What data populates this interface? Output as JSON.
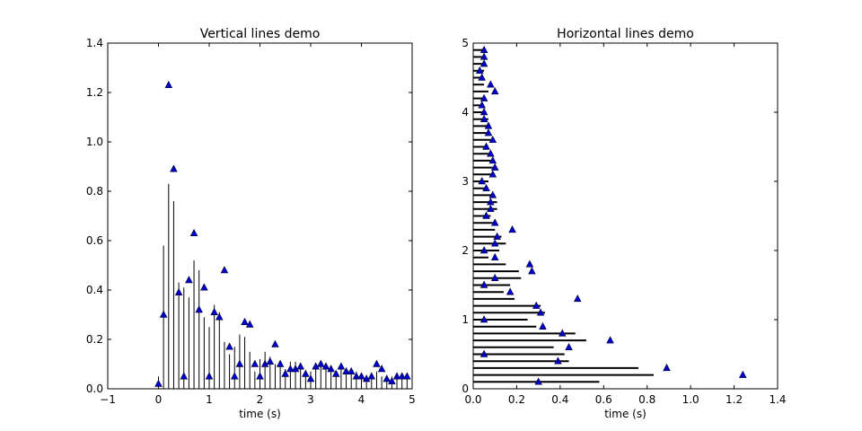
{
  "chart_data": [
    {
      "type": "vlines",
      "title": "Vertical lines demo",
      "xlabel": "time (s)",
      "ylabel": "",
      "xlim": [
        -1,
        5
      ],
      "ylim": [
        0,
        1.4
      ],
      "xticks": [
        "−1",
        "0",
        "1",
        "2",
        "3",
        "4",
        "5"
      ],
      "yticks": [
        "0.0",
        "0.2",
        "0.4",
        "0.6",
        "0.8",
        "1.0",
        "1.2",
        "1.4"
      ],
      "grid": false,
      "line_color": "#000000",
      "marker_color": "#0000cc",
      "x": [
        0.0,
        0.1,
        0.2,
        0.3,
        0.4,
        0.5,
        0.6,
        0.7,
        0.8,
        0.9,
        1.0,
        1.1,
        1.2,
        1.3,
        1.4,
        1.5,
        1.6,
        1.7,
        1.8,
        1.9,
        2.0,
        2.1,
        2.2,
        2.3,
        2.4,
        2.5,
        2.6,
        2.7,
        2.8,
        2.9,
        3.0,
        3.1,
        3.2,
        3.3,
        3.4,
        3.5,
        3.6,
        3.7,
        3.8,
        3.9,
        4.0,
        4.1,
        4.2,
        4.3,
        4.4,
        4.5,
        4.6,
        4.7,
        4.8,
        4.9
      ],
      "lines": [
        0.05,
        0.58,
        0.83,
        0.76,
        0.43,
        0.41,
        0.37,
        0.52,
        0.48,
        0.29,
        0.25,
        0.34,
        0.31,
        0.19,
        0.14,
        0.17,
        0.22,
        0.21,
        0.15,
        0.07,
        0.12,
        0.15,
        0.13,
        0.1,
        0.09,
        0.08,
        0.11,
        0.11,
        0.09,
        0.07,
        0.07,
        0.1,
        0.09,
        0.08,
        0.07,
        0.07,
        0.08,
        0.06,
        0.07,
        0.07,
        0.06,
        0.05,
        0.05,
        0.07,
        0.05,
        0.04,
        0.05,
        0.04,
        0.04,
        0.05
      ],
      "markers": [
        0.02,
        0.3,
        1.23,
        0.89,
        0.39,
        0.05,
        0.44,
        0.63,
        0.32,
        0.41,
        0.05,
        0.31,
        0.29,
        0.48,
        0.17,
        0.05,
        0.1,
        0.27,
        0.26,
        0.1,
        0.05,
        0.1,
        0.11,
        0.18,
        0.1,
        0.06,
        0.08,
        0.08,
        0.09,
        0.06,
        0.04,
        0.09,
        0.1,
        0.09,
        0.08,
        0.06,
        0.09,
        0.07,
        0.07,
        0.05,
        0.05,
        0.04,
        0.05,
        0.1,
        0.08,
        0.04,
        0.03,
        0.05,
        0.05,
        0.05
      ]
    },
    {
      "type": "hlines",
      "title": "Horizontal lines demo",
      "xlabel": "time (s)",
      "ylabel": "",
      "xlim": [
        0,
        1.4
      ],
      "ylim": [
        0,
        5
      ],
      "xticks": [
        "0.0",
        "0.2",
        "0.4",
        "0.6",
        "0.8",
        "1.0",
        "1.2",
        "1.4"
      ],
      "yticks": [
        "0",
        "1",
        "2",
        "3",
        "4",
        "5"
      ],
      "grid": false,
      "line_color": "#000000",
      "marker_color": "#0000cc",
      "y": [
        0.1,
        0.2,
        0.3,
        0.4,
        0.5,
        0.6,
        0.7,
        0.8,
        0.9,
        1.0,
        1.1,
        1.2,
        1.3,
        1.4,
        1.5,
        1.6,
        1.7,
        1.8,
        1.9,
        2.0,
        2.1,
        2.2,
        2.3,
        2.4,
        2.5,
        2.6,
        2.7,
        2.8,
        2.9,
        3.0,
        3.1,
        3.2,
        3.3,
        3.4,
        3.5,
        3.6,
        3.7,
        3.8,
        3.9,
        4.0,
        4.1,
        4.2,
        4.3,
        4.4,
        4.5,
        4.6,
        4.7,
        4.8,
        4.9
      ],
      "lines": [
        0.58,
        0.83,
        0.76,
        0.44,
        0.42,
        0.37,
        0.52,
        0.47,
        0.29,
        0.25,
        0.33,
        0.31,
        0.19,
        0.14,
        0.17,
        0.22,
        0.21,
        0.15,
        0.07,
        0.12,
        0.15,
        0.13,
        0.1,
        0.09,
        0.08,
        0.11,
        0.11,
        0.09,
        0.07,
        0.07,
        0.1,
        0.09,
        0.08,
        0.07,
        0.07,
        0.08,
        0.06,
        0.07,
        0.07,
        0.06,
        0.05,
        0.05,
        0.07,
        0.05,
        0.04,
        0.05,
        0.04,
        0.04,
        0.05
      ],
      "markers": [
        0.3,
        1.24,
        0.89,
        0.39,
        0.05,
        0.44,
        0.63,
        0.41,
        0.32,
        0.05,
        0.31,
        0.29,
        0.48,
        0.17,
        0.05,
        0.1,
        0.27,
        0.26,
        0.1,
        0.05,
        0.1,
        0.11,
        0.18,
        0.1,
        0.06,
        0.08,
        0.08,
        0.09,
        0.06,
        0.04,
        0.09,
        0.1,
        0.09,
        0.08,
        0.06,
        0.09,
        0.07,
        0.07,
        0.05,
        0.05,
        0.04,
        0.05,
        0.1,
        0.08,
        0.04,
        0.03,
        0.05,
        0.05,
        0.05
      ]
    }
  ]
}
